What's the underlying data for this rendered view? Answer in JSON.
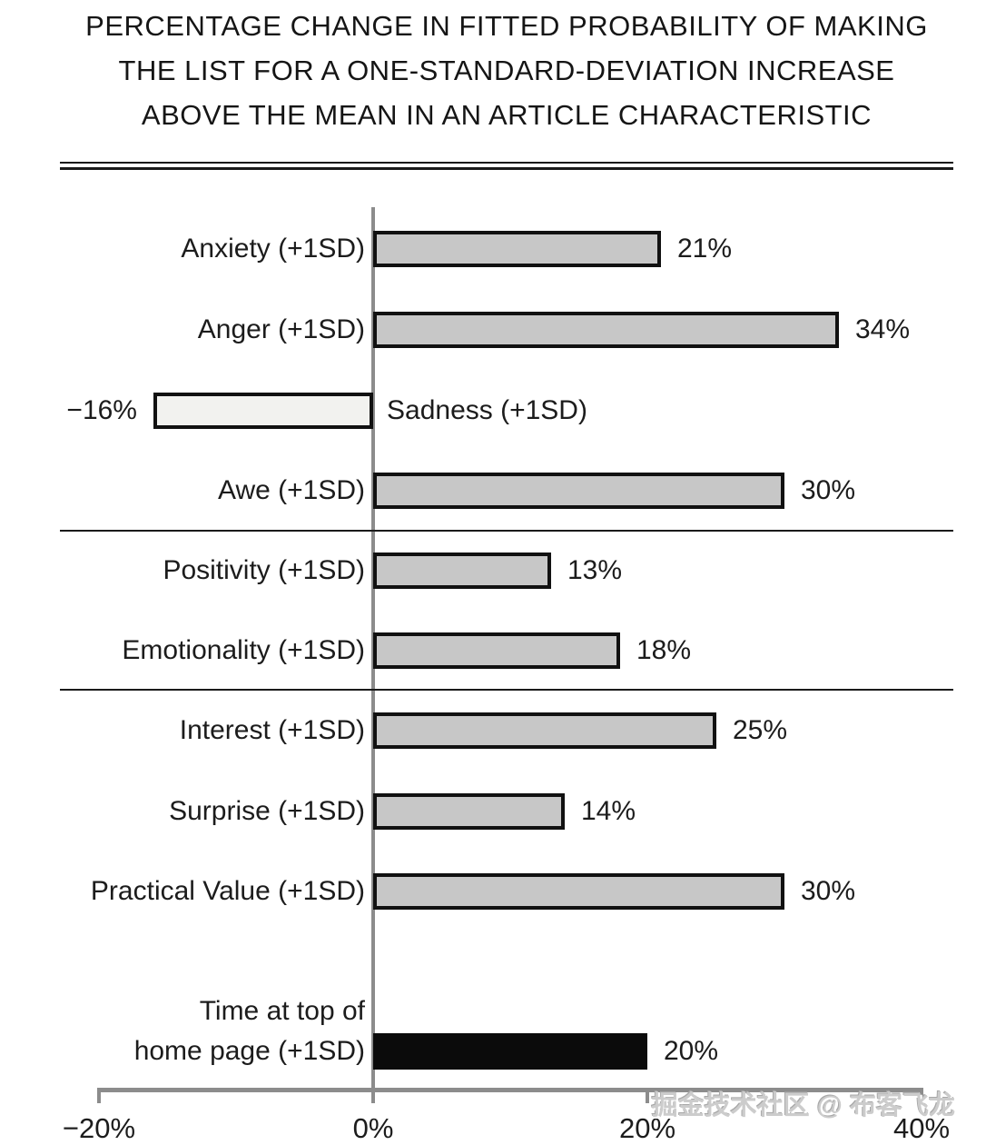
{
  "title_lines": [
    "PERCENTAGE CHANGE IN FITTED PROBABILITY OF MAKING",
    "THE LIST FOR A ONE-STANDARD-DEVIATION INCREASE",
    "ABOVE THE MEAN IN AN ARTICLE CHARACTERISTIC"
  ],
  "watermark": "掘金技术社区 @ 布客飞龙",
  "colors": {
    "bar_fill": "#c7c7c7",
    "bar_fill_light": "#f2f2ef",
    "bar_fill_black": "#0b0b0b",
    "bar_border": "#111111",
    "axis_gray": "#8c8c8c",
    "text": "#1c1c1c"
  },
  "chart_data": {
    "type": "bar",
    "orientation": "horizontal",
    "title": "PERCENTAGE CHANGE IN FITTED PROBABILITY OF MAKING THE LIST FOR A ONE-STANDARD-DEVIATION INCREASE ABOVE THE MEAN IN AN ARTICLE CHARACTERISTIC",
    "unit": "%",
    "xlim": [
      -20,
      40
    ],
    "x_ticks": [
      {
        "value": -20,
        "label": "−20%"
      },
      {
        "value": 0,
        "label": "0%"
      },
      {
        "value": 20,
        "label": "20%"
      },
      {
        "value": 40,
        "label": "40%"
      }
    ],
    "bars": [
      {
        "label": "Anxiety (+1SD)",
        "value": 21,
        "value_label": "21%",
        "fill": "bar_fill",
        "group": 1
      },
      {
        "label": "Anger (+1SD)",
        "value": 34,
        "value_label": "34%",
        "fill": "bar_fill",
        "group": 1
      },
      {
        "label": "Sadness (+1SD)",
        "value": -16,
        "value_label": "−16%",
        "fill": "bar_fill_light",
        "group": 1
      },
      {
        "label": "Awe (+1SD)",
        "value": 30,
        "value_label": "30%",
        "fill": "bar_fill",
        "group": 1
      },
      {
        "label": "Positivity (+1SD)",
        "value": 13,
        "value_label": "13%",
        "fill": "bar_fill",
        "group": 2
      },
      {
        "label": "Emotionality (+1SD)",
        "value": 18,
        "value_label": "18%",
        "fill": "bar_fill",
        "group": 2
      },
      {
        "label": "Interest (+1SD)",
        "value": 25,
        "value_label": "25%",
        "fill": "bar_fill",
        "group": 3
      },
      {
        "label": "Surprise (+1SD)",
        "value": 14,
        "value_label": "14%",
        "fill": "bar_fill",
        "group": 3
      },
      {
        "label": "Practical Value (+1SD)",
        "value": 30,
        "value_label": "30%",
        "fill": "bar_fill",
        "group": 3
      },
      {
        "label": "Time at top of\nhome page (+1SD)",
        "value": 20,
        "value_label": "20%",
        "fill": "bar_fill_black",
        "group": 4
      }
    ],
    "group_separators_between": [
      [
        1,
        2
      ],
      [
        2,
        3
      ]
    ],
    "legend": null,
    "grid": false
  }
}
